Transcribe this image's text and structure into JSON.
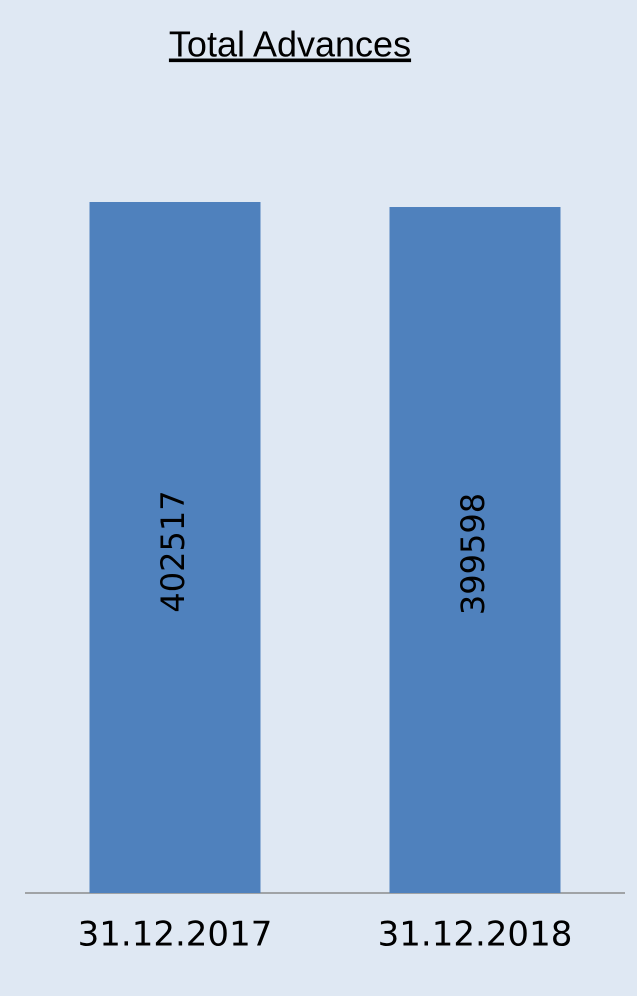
{
  "chart_data": {
    "type": "bar",
    "title": "Total Advances",
    "categories": [
      "31.12.2017",
      "31.12.2018"
    ],
    "values": [
      402517,
      399598
    ],
    "color": "#4f81bd"
  }
}
